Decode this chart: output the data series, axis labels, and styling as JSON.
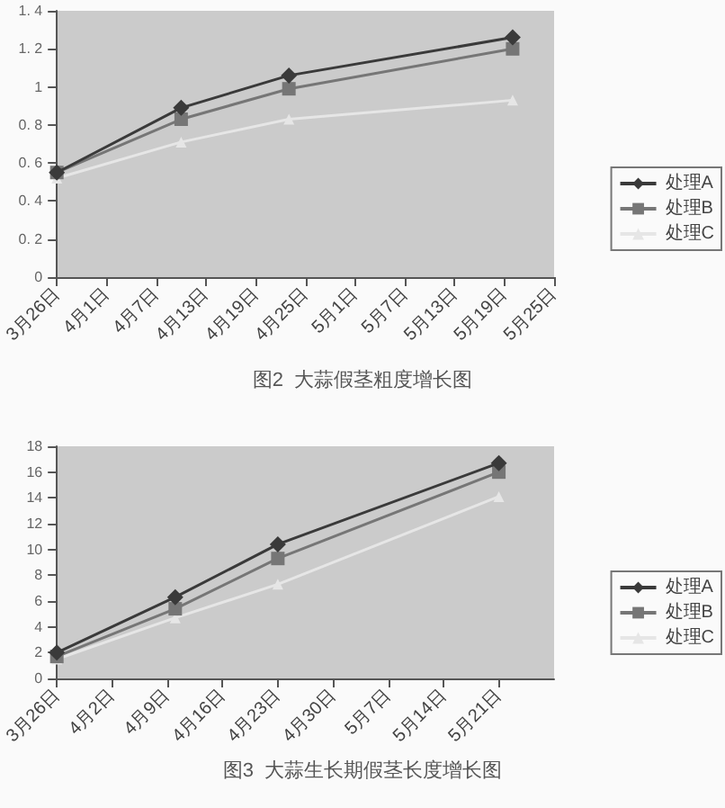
{
  "chart_data": [
    {
      "type": "line",
      "title": "图2  大蒜假茎粗度增长图",
      "x": [
        "--03-26",
        "--04-10",
        "--04-23",
        "--05-20"
      ],
      "series": [
        {
          "name": "处理A",
          "color": "#3a3a3a",
          "marker": "diamond",
          "values": [
            0.55,
            0.89,
            1.06,
            1.26
          ]
        },
        {
          "name": "处理B",
          "color": "#767676",
          "marker": "square",
          "values": [
            0.55,
            0.83,
            0.99,
            1.2
          ]
        },
        {
          "name": "处理C",
          "color": "#e6e6e6",
          "marker": "triangle",
          "values": [
            0.52,
            0.71,
            0.83,
            0.93
          ]
        }
      ],
      "xlim": [
        "--03-26",
        "--05-25"
      ],
      "xticks": [
        {
          "value": "--03-26",
          "label": "3月26日"
        },
        {
          "value": "--04-01",
          "label": "4月1日"
        },
        {
          "value": "--04-07",
          "label": "4月7日"
        },
        {
          "value": "--04-13",
          "label": "4月13日"
        },
        {
          "value": "--04-19",
          "label": "4月19日"
        },
        {
          "value": "--04-25",
          "label": "4月25日"
        },
        {
          "value": "--05-01",
          "label": "5月1日"
        },
        {
          "value": "--05-07",
          "label": "5月7日"
        },
        {
          "value": "--05-13",
          "label": "5月13日"
        },
        {
          "value": "--05-19",
          "label": "5月19日"
        },
        {
          "value": "--05-25",
          "label": "5月25日"
        }
      ],
      "ylim": [
        0,
        1.4
      ],
      "yticks": [
        0,
        {
          "value": 0.2,
          "label": "0. 2"
        },
        {
          "value": 0.4,
          "label": "0. 4"
        },
        {
          "value": 0.6,
          "label": "0. 6"
        },
        {
          "value": 0.8,
          "label": "0. 8"
        },
        1,
        {
          "value": 1.2,
          "label": "1. 2"
        },
        {
          "value": 1.4,
          "label": "1. 4"
        }
      ],
      "legend": "right",
      "grid": false
    },
    {
      "type": "line",
      "title": "图3  大蒜生长期假茎长度增长图",
      "x": [
        "--03-26",
        "--04-10",
        "--04-23",
        "--05-21"
      ],
      "series": [
        {
          "name": "处理A",
          "color": "#3a3a3a",
          "marker": "diamond",
          "values": [
            2,
            6.3,
            10.4,
            16.7
          ]
        },
        {
          "name": "处理B",
          "color": "#767676",
          "marker": "square",
          "values": [
            1.7,
            5.4,
            9.3,
            16
          ]
        },
        {
          "name": "处理C",
          "color": "#e6e6e6",
          "marker": "triangle",
          "values": [
            1.5,
            4.7,
            7.3,
            14.1
          ]
        }
      ],
      "xlim": [
        "--03-26",
        "--05-28"
      ],
      "xticks": [
        {
          "value": "--03-26",
          "label": "3月26日"
        },
        {
          "value": "--04-02",
          "label": "4月2日"
        },
        {
          "value": "--04-09",
          "label": "4月9日"
        },
        {
          "value": "--04-16",
          "label": "4月16日"
        },
        {
          "value": "--04-23",
          "label": "4月23日"
        },
        {
          "value": "--04-30",
          "label": "4月30日"
        },
        {
          "value": "--05-07",
          "label": "5月7日"
        },
        {
          "value": "--05-14",
          "label": "5月14日"
        },
        {
          "value": "--05-21",
          "label": "5月21日"
        }
      ],
      "ylim": [
        0,
        18
      ],
      "yticks": [
        0,
        2,
        4,
        6,
        8,
        10,
        12,
        14,
        16,
        18
      ],
      "legend": "right",
      "grid": false
    }
  ]
}
